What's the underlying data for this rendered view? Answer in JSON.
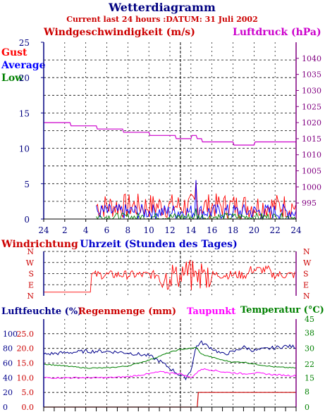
{
  "header": {
    "title": "Wetterdiagramm",
    "subtitle": "Current last 24 hours :DATUM: 31 Juli 2002"
  },
  "colors": {
    "gust": "#ff0000",
    "average": "#0000ff",
    "low": "#008000",
    "luftdruck": "#cc00cc",
    "humidity": "#00008b",
    "temperature": "#008000",
    "taupunkt": "#ff00ff",
    "rain": "#cc0000",
    "axis_left": "#000080",
    "axis_right": "#800080"
  },
  "chart_data": [
    {
      "type": "line",
      "id": "wind-pressure",
      "title": "",
      "left_axis_label": "Windgeschwindigkeit (m/s)",
      "right_axis_label": "Luftdruck (hPa)",
      "legend": [
        "Gust",
        "Average",
        "Low"
      ],
      "left_ylim": [
        0,
        25
      ],
      "left_ticks": [
        "0",
        "5",
        "10",
        "15",
        "20",
        "25"
      ],
      "right_ylim": [
        990,
        1045
      ],
      "right_ticks": [
        "995",
        "1000",
        "1005",
        "1010",
        "1015",
        "1020",
        "1025",
        "1030",
        "1035",
        "1040"
      ],
      "x_tick_labels": [
        "24",
        "2",
        "4",
        "6",
        "8",
        "10",
        "12",
        "14",
        "16",
        "18",
        "20",
        "22",
        "24"
      ],
      "xlabel": "Uhrzeit (Stunden des Tages)",
      "grid": true,
      "series": [
        {
          "name": "Luftdruck",
          "axis": "right",
          "x": [
            0,
            2.5,
            2.6,
            5,
            5.1,
            7.5,
            7.6,
            10,
            10.1,
            12.5,
            12.6,
            14,
            14.1,
            14.5,
            14.6,
            15,
            15.1,
            18,
            18.1,
            20,
            20.1,
            24
          ],
          "y": [
            1020,
            1020,
            1019,
            1019,
            1018,
            1018,
            1017,
            1017,
            1016,
            1016,
            1015,
            1015,
            1016,
            1016,
            1015,
            1015,
            1014,
            1014,
            1013,
            1013,
            1014,
            1014
          ]
        },
        {
          "name": "Gust",
          "axis": "left",
          "wind_start": 5,
          "base": 1.3,
          "amp": 1.8,
          "spike_x": 14.5,
          "spike_y": 5.5
        },
        {
          "name": "Average",
          "axis": "left",
          "wind_start": 5,
          "base": 0.7,
          "amp": 1.1,
          "spike_x": 14.5,
          "spike_y": 5.5
        },
        {
          "name": "Low",
          "axis": "left",
          "wind_start": 5,
          "base": 0.1,
          "amp": 0.6,
          "spike_x": 14.5,
          "spike_y": 1.5
        }
      ]
    },
    {
      "type": "line",
      "id": "windrichtung",
      "title": "",
      "left_axis_label": "Windrichtung",
      "directions": [
        "N",
        "W",
        "S",
        "E",
        "N"
      ],
      "ylim": [
        0,
        360
      ],
      "grid": true,
      "series": [
        {
          "name": "Windrichtung",
          "x": [
            0,
            4.5,
            4.6,
            24
          ],
          "y": [
            30,
            30,
            170,
            170
          ],
          "jitter": 35
        }
      ]
    },
    {
      "type": "line",
      "id": "humidity-temp",
      "title": "",
      "left_labels": [
        "Luftfeuchte (%)",
        "Regenmenge (mm)"
      ],
      "right_labels": [
        "Taupunkt",
        "Temperatur (°C)"
      ],
      "left_ticks_humidity": [
        "0",
        "20",
        "40",
        "60",
        "80",
        "100"
      ],
      "left_ticks_rain": [
        "0.0",
        "5.0",
        "10.0",
        "15.0",
        "20.0",
        "25.0"
      ],
      "right_ticks_temp": [
        "0",
        "8",
        "15",
        "22",
        "30",
        "38",
        "45"
      ],
      "humidity_ylim": [
        0,
        120
      ],
      "temp_ylim": [
        0,
        45
      ],
      "rain_ylim": [
        0,
        30
      ],
      "grid": true,
      "series": [
        {
          "name": "Luftfeuchte",
          "axis": "humidity",
          "x": [
            0,
            2,
            4,
            6,
            8,
            10,
            11,
            12,
            13,
            13.5,
            14,
            14.5,
            15,
            16,
            17,
            18,
            19,
            20,
            21,
            22,
            23,
            24
          ],
          "y": [
            72,
            74,
            76,
            76,
            74,
            70,
            63,
            53,
            43,
            40,
            50,
            83,
            88,
            80,
            72,
            75,
            82,
            77,
            79,
            81,
            83,
            82
          ]
        },
        {
          "name": "Temperatur",
          "axis": "temp",
          "x": [
            0,
            2,
            4,
            6,
            8,
            10,
            11,
            12,
            13,
            14,
            14.5,
            15,
            16,
            17,
            18,
            19,
            20,
            22,
            24
          ],
          "y": [
            22,
            21,
            20,
            20,
            21,
            24,
            26,
            28,
            29.5,
            30,
            30.5,
            27,
            25.5,
            24,
            23,
            23,
            22,
            20.5,
            20
          ]
        },
        {
          "name": "Taupunkt",
          "axis": "temp",
          "x": [
            0,
            2,
            4,
            6,
            8,
            10,
            11,
            12,
            13,
            13.5,
            14,
            15,
            16,
            17,
            18,
            19,
            20,
            22,
            24
          ],
          "y": [
            15,
            15,
            15,
            15,
            15.5,
            17,
            18,
            17.5,
            17,
            16,
            15,
            19.5,
            19,
            18,
            17.5,
            17,
            17.5,
            16.5,
            16
          ]
        },
        {
          "name": "Regenmenge",
          "axis": "rain",
          "x": [
            0,
            14.6,
            14.7,
            24
          ],
          "y": [
            0,
            0,
            5,
            5
          ]
        }
      ]
    }
  ]
}
